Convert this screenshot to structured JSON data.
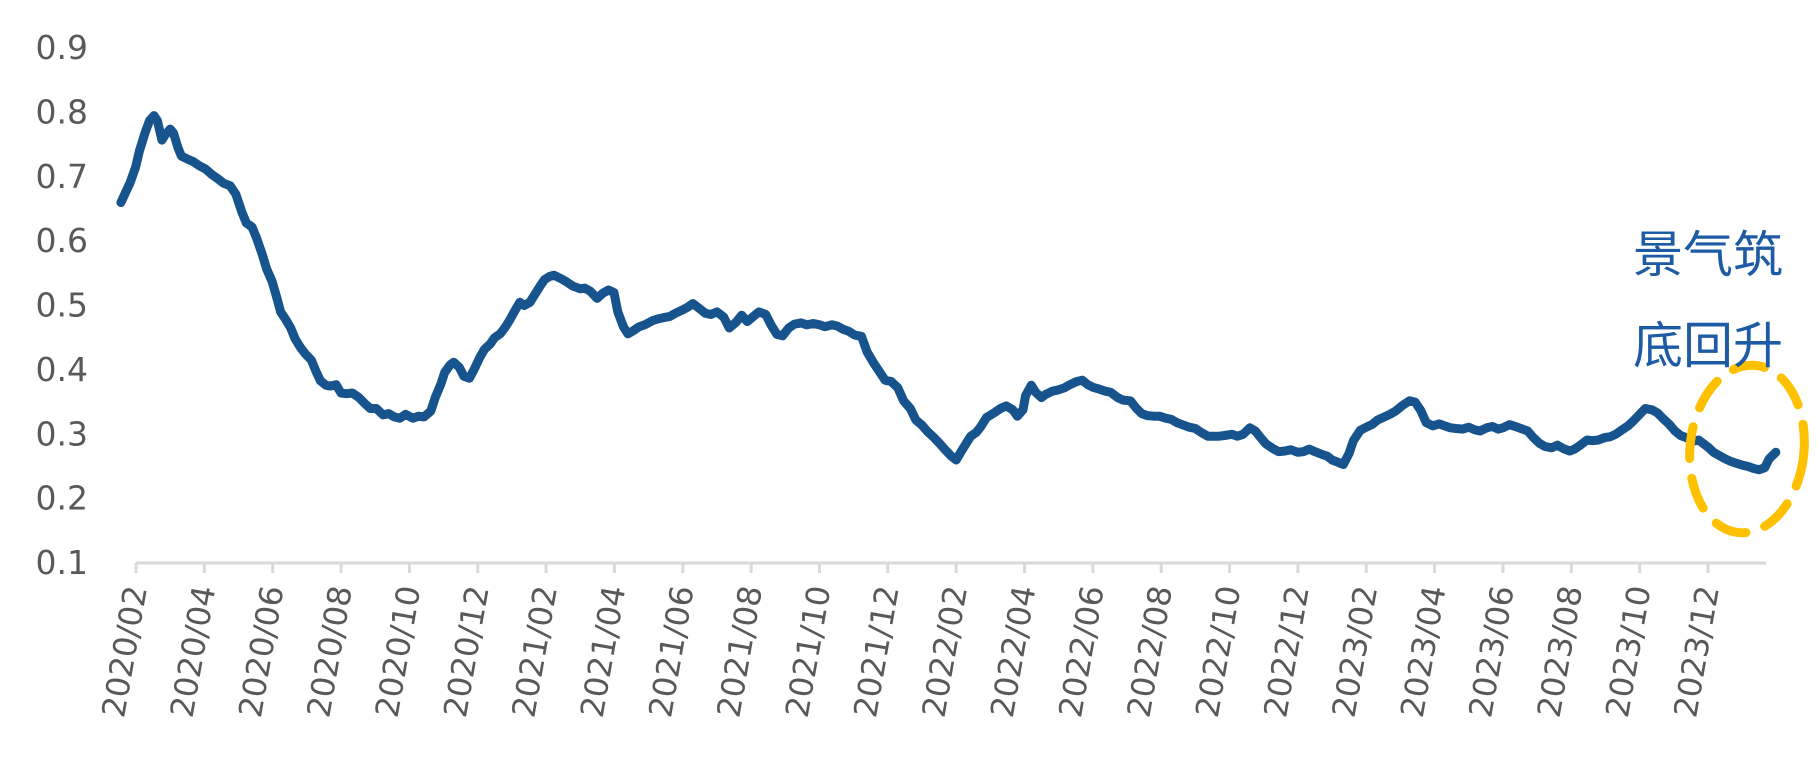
{
  "chart_data": {
    "type": "line",
    "title": "",
    "grid": false,
    "legend": "none",
    "colors": {
      "series_line": "#17538C",
      "annotation_text": "#1D5BA4",
      "highlight_ellipse": "#FFC000",
      "axis_line": "#D9D9D9",
      "tick_label": "#595959"
    },
    "annotation": {
      "line1": "景气筑",
      "line2": "底回升"
    },
    "highlight": {
      "shape": "dashed-ellipse",
      "around": "final dip and upturn of the line (late 2023 - early 2024)"
    },
    "y_axis": {
      "min": 0.1,
      "max": 0.9,
      "tick_labels": [
        "0.9",
        "0.8",
        "0.7",
        "0.6",
        "0.5",
        "0.4",
        "0.3",
        "0.2",
        "0.1"
      ]
    },
    "x_axis": {
      "start": "2020/02",
      "end_of_axis": "2024/01",
      "tick_interval_months": 2,
      "tick_labels": [
        "2020/02",
        "2020/04",
        "2020/06",
        "2020/08",
        "2020/10",
        "2020/12",
        "2021/02",
        "2021/04",
        "2021/06",
        "2021/08",
        "2021/10",
        "2021/12",
        "2022/02",
        "2022/04",
        "2022/06",
        "2022/08",
        "2022/10",
        "2022/12",
        "2023/02",
        "2023/04",
        "2023/06",
        "2023/08",
        "2023/10",
        "2023/12"
      ]
    },
    "points": [
      [
        "2020-01-18",
        0.66
      ],
      [
        "2020-01-22",
        0.675
      ],
      [
        "2020-01-26",
        0.69
      ],
      [
        "2020-01-31",
        0.715
      ],
      [
        "2020-02-04",
        0.74
      ],
      [
        "2020-02-09",
        0.768
      ],
      [
        "2020-02-13",
        0.787
      ],
      [
        "2020-02-17",
        0.795
      ],
      [
        "2020-02-20",
        0.787
      ],
      [
        "2020-02-24",
        0.757
      ],
      [
        "2020-02-27",
        0.765
      ],
      [
        "2020-03-01",
        0.774
      ],
      [
        "2020-03-04",
        0.768
      ],
      [
        "2020-03-08",
        0.745
      ],
      [
        "2020-03-11",
        0.732
      ],
      [
        "2020-03-17",
        0.727
      ],
      [
        "2020-03-22",
        0.723
      ],
      [
        "2020-03-27",
        0.717
      ],
      [
        "2020-04-02",
        0.712
      ],
      [
        "2020-04-08",
        0.703
      ],
      [
        "2020-04-13",
        0.697
      ],
      [
        "2020-04-18",
        0.69
      ],
      [
        "2020-04-24",
        0.686
      ],
      [
        "2020-04-29",
        0.673
      ],
      [
        "2020-05-04",
        0.645
      ],
      [
        "2020-05-08",
        0.628
      ],
      [
        "2020-05-13",
        0.622
      ],
      [
        "2020-05-17",
        0.605
      ],
      [
        "2020-05-22",
        0.58
      ],
      [
        "2020-05-26",
        0.557
      ],
      [
        "2020-05-31",
        0.537
      ],
      [
        "2020-06-05",
        0.51
      ],
      [
        "2020-06-08",
        0.49
      ],
      [
        "2020-06-13",
        0.477
      ],
      [
        "2020-06-17",
        0.465
      ],
      [
        "2020-06-21",
        0.448
      ],
      [
        "2020-06-26",
        0.434
      ],
      [
        "2020-06-30",
        0.425
      ],
      [
        "2020-07-05",
        0.415
      ],
      [
        "2020-07-09",
        0.398
      ],
      [
        "2020-07-13",
        0.383
      ],
      [
        "2020-07-18",
        0.376
      ],
      [
        "2020-07-22",
        0.375
      ],
      [
        "2020-07-27",
        0.377
      ],
      [
        "2020-08-01",
        0.364
      ],
      [
        "2020-08-06",
        0.363
      ],
      [
        "2020-08-11",
        0.364
      ],
      [
        "2020-08-17",
        0.357
      ],
      [
        "2020-08-22",
        0.348
      ],
      [
        "2020-08-27",
        0.34
      ],
      [
        "2020-09-02",
        0.34
      ],
      [
        "2020-09-08",
        0.33
      ],
      [
        "2020-09-13",
        0.332
      ],
      [
        "2020-09-18",
        0.327
      ],
      [
        "2020-09-23",
        0.325
      ],
      [
        "2020-09-28",
        0.331
      ],
      [
        "2020-10-04",
        0.325
      ],
      [
        "2020-10-09",
        0.328
      ],
      [
        "2020-10-14",
        0.327
      ],
      [
        "2020-10-20",
        0.336
      ],
      [
        "2020-10-24",
        0.357
      ],
      [
        "2020-10-29",
        0.378
      ],
      [
        "2020-11-02",
        0.396
      ],
      [
        "2020-11-07",
        0.408
      ],
      [
        "2020-11-10",
        0.412
      ],
      [
        "2020-11-15",
        0.404
      ],
      [
        "2020-11-19",
        0.39
      ],
      [
        "2020-11-24",
        0.387
      ],
      [
        "2020-11-28",
        0.4
      ],
      [
        "2020-12-03",
        0.42
      ],
      [
        "2020-12-07",
        0.432
      ],
      [
        "2020-12-12",
        0.44
      ],
      [
        "2020-12-16",
        0.45
      ],
      [
        "2020-12-21",
        0.456
      ],
      [
        "2020-12-25",
        0.465
      ],
      [
        "2020-12-29",
        0.476
      ],
      [
        "2021-01-03",
        0.49
      ],
      [
        "2021-01-08",
        0.505
      ],
      [
        "2021-01-12",
        0.5
      ],
      [
        "2021-01-17",
        0.505
      ],
      [
        "2021-01-21",
        0.516
      ],
      [
        "2021-01-26",
        0.53
      ],
      [
        "2021-01-30",
        0.54
      ],
      [
        "2021-02-04",
        0.545
      ],
      [
        "2021-02-08",
        0.547
      ],
      [
        "2021-02-14",
        0.542
      ],
      [
        "2021-02-19",
        0.537
      ],
      [
        "2021-02-25",
        0.53
      ],
      [
        "2021-03-01",
        0.526
      ],
      [
        "2021-03-05",
        0.527
      ],
      [
        "2021-03-10",
        0.522
      ],
      [
        "2021-03-16",
        0.511
      ],
      [
        "2021-03-21",
        0.519
      ],
      [
        "2021-03-26",
        0.524
      ],
      [
        "2021-03-31",
        0.52
      ],
      [
        "2021-04-04",
        0.49
      ],
      [
        "2021-04-09",
        0.467
      ],
      [
        "2021-04-13",
        0.456
      ],
      [
        "2021-04-18",
        0.461
      ],
      [
        "2021-04-23",
        0.467
      ],
      [
        "2021-04-28",
        0.47
      ],
      [
        "2021-05-04",
        0.476
      ],
      [
        "2021-05-09",
        0.479
      ],
      [
        "2021-05-14",
        0.481
      ],
      [
        "2021-05-20",
        0.483
      ],
      [
        "2021-05-25",
        0.488
      ],
      [
        "2021-05-30",
        0.492
      ],
      [
        "2021-06-05",
        0.497
      ],
      [
        "2021-06-10",
        0.503
      ],
      [
        "2021-06-16",
        0.495
      ],
      [
        "2021-06-21",
        0.488
      ],
      [
        "2021-06-26",
        0.486
      ],
      [
        "2021-07-01",
        0.49
      ],
      [
        "2021-07-07",
        0.482
      ],
      [
        "2021-07-12",
        0.465
      ],
      [
        "2021-07-18",
        0.474
      ],
      [
        "2021-07-23",
        0.485
      ],
      [
        "2021-07-28",
        0.475
      ],
      [
        "2021-08-03",
        0.483
      ],
      [
        "2021-08-08",
        0.49
      ],
      [
        "2021-08-14",
        0.486
      ],
      [
        "2021-08-19",
        0.469
      ],
      [
        "2021-08-24",
        0.455
      ],
      [
        "2021-08-29",
        0.453
      ],
      [
        "2021-09-04",
        0.465
      ],
      [
        "2021-09-09",
        0.471
      ],
      [
        "2021-09-15",
        0.473
      ],
      [
        "2021-09-20",
        0.47
      ],
      [
        "2021-09-26",
        0.472
      ],
      [
        "2021-10-01",
        0.47
      ],
      [
        "2021-10-06",
        0.467
      ],
      [
        "2021-10-12",
        0.47
      ],
      [
        "2021-10-17",
        0.468
      ],
      [
        "2021-10-22",
        0.463
      ],
      [
        "2021-10-27",
        0.46
      ],
      [
        "2021-11-02",
        0.454
      ],
      [
        "2021-11-08",
        0.452
      ],
      [
        "2021-11-13",
        0.428
      ],
      [
        "2021-11-19",
        0.41
      ],
      [
        "2021-11-24",
        0.397
      ],
      [
        "2021-11-29",
        0.384
      ],
      [
        "2021-12-04",
        0.382
      ],
      [
        "2021-12-10",
        0.372
      ],
      [
        "2021-12-15",
        0.352
      ],
      [
        "2021-12-21",
        0.34
      ],
      [
        "2021-12-26",
        0.322
      ],
      [
        "2022-01-01",
        0.314
      ],
      [
        "2022-01-06",
        0.304
      ],
      [
        "2022-01-11",
        0.296
      ],
      [
        "2022-01-17",
        0.285
      ],
      [
        "2022-01-22",
        0.275
      ],
      [
        "2022-01-27",
        0.266
      ],
      [
        "2022-02-01",
        0.26
      ],
      [
        "2022-02-05",
        0.272
      ],
      [
        "2022-02-10",
        0.286
      ],
      [
        "2022-02-14",
        0.297
      ],
      [
        "2022-02-19",
        0.303
      ],
      [
        "2022-02-23",
        0.312
      ],
      [
        "2022-02-28",
        0.326
      ],
      [
        "2022-03-05",
        0.334
      ],
      [
        "2022-03-10",
        0.34
      ],
      [
        "2022-03-15",
        0.344
      ],
      [
        "2022-03-21",
        0.338
      ],
      [
        "2022-03-25",
        0.328
      ],
      [
        "2022-03-30",
        0.338
      ],
      [
        "2022-04-02",
        0.36
      ],
      [
        "2022-04-07",
        0.376
      ],
      [
        "2022-04-11",
        0.365
      ],
      [
        "2022-04-16",
        0.357
      ],
      [
        "2022-04-20",
        0.362
      ],
      [
        "2022-04-26",
        0.367
      ],
      [
        "2022-05-01",
        0.369
      ],
      [
        "2022-05-06",
        0.372
      ],
      [
        "2022-05-11",
        0.377
      ],
      [
        "2022-05-17",
        0.382
      ],
      [
        "2022-05-22",
        0.384
      ],
      [
        "2022-05-27",
        0.377
      ],
      [
        "2022-06-01",
        0.373
      ],
      [
        "2022-06-07",
        0.37
      ],
      [
        "2022-06-12",
        0.367
      ],
      [
        "2022-06-17",
        0.365
      ],
      [
        "2022-06-23",
        0.357
      ],
      [
        "2022-06-28",
        0.353
      ],
      [
        "2022-07-04",
        0.352
      ],
      [
        "2022-07-09",
        0.341
      ],
      [
        "2022-07-14",
        0.332
      ],
      [
        "2022-07-19",
        0.329
      ],
      [
        "2022-07-25",
        0.328
      ],
      [
        "2022-07-30",
        0.328
      ],
      [
        "2022-08-05",
        0.325
      ],
      [
        "2022-08-10",
        0.323
      ],
      [
        "2022-08-15",
        0.318
      ],
      [
        "2022-08-21",
        0.314
      ],
      [
        "2022-08-26",
        0.311
      ],
      [
        "2022-09-01",
        0.309
      ],
      [
        "2022-09-06",
        0.303
      ],
      [
        "2022-09-12",
        0.297
      ],
      [
        "2022-09-17",
        0.297
      ],
      [
        "2022-09-22",
        0.297
      ],
      [
        "2022-09-27",
        0.298
      ],
      [
        "2022-10-03",
        0.3
      ],
      [
        "2022-10-08",
        0.297
      ],
      [
        "2022-10-13",
        0.3
      ],
      [
        "2022-10-19",
        0.31
      ],
      [
        "2022-10-24",
        0.305
      ],
      [
        "2022-10-29",
        0.294
      ],
      [
        "2022-11-03",
        0.285
      ],
      [
        "2022-11-09",
        0.278
      ],
      [
        "2022-11-14",
        0.273
      ],
      [
        "2022-11-20",
        0.274
      ],
      [
        "2022-11-25",
        0.276
      ],
      [
        "2022-12-01",
        0.272
      ],
      [
        "2022-12-06",
        0.273
      ],
      [
        "2022-12-11",
        0.277
      ],
      [
        "2022-12-16",
        0.273
      ],
      [
        "2022-12-22",
        0.269
      ],
      [
        "2022-12-27",
        0.266
      ],
      [
        "2023-01-01",
        0.26
      ],
      [
        "2023-01-07",
        0.256
      ],
      [
        "2023-01-11",
        0.253
      ],
      [
        "2023-01-16",
        0.27
      ],
      [
        "2023-01-20",
        0.29
      ],
      [
        "2023-01-26",
        0.306
      ],
      [
        "2023-02-01",
        0.311
      ],
      [
        "2023-02-06",
        0.315
      ],
      [
        "2023-02-11",
        0.322
      ],
      [
        "2023-02-17",
        0.327
      ],
      [
        "2023-02-22",
        0.331
      ],
      [
        "2023-02-27",
        0.336
      ],
      [
        "2023-03-03",
        0.345
      ],
      [
        "2023-03-09",
        0.352
      ],
      [
        "2023-03-14",
        0.35
      ],
      [
        "2023-03-19",
        0.337
      ],
      [
        "2023-03-24",
        0.318
      ],
      [
        "2023-03-30",
        0.313
      ],
      [
        "2023-04-05",
        0.316
      ],
      [
        "2023-04-10",
        0.313
      ],
      [
        "2023-04-15",
        0.31
      ],
      [
        "2023-04-20",
        0.309
      ],
      [
        "2023-04-26",
        0.308
      ],
      [
        "2023-05-01",
        0.311
      ],
      [
        "2023-05-06",
        0.307
      ],
      [
        "2023-05-11",
        0.305
      ],
      [
        "2023-05-17",
        0.31
      ],
      [
        "2023-05-22",
        0.312
      ],
      [
        "2023-05-27",
        0.308
      ],
      [
        "2023-06-01",
        0.31
      ],
      [
        "2023-06-07",
        0.315
      ],
      [
        "2023-06-12",
        0.312
      ],
      [
        "2023-06-17",
        0.309
      ],
      [
        "2023-06-23",
        0.305
      ],
      [
        "2023-06-28",
        0.295
      ],
      [
        "2023-07-03",
        0.286
      ],
      [
        "2023-07-08",
        0.281
      ],
      [
        "2023-07-14",
        0.279
      ],
      [
        "2023-07-19",
        0.283
      ],
      [
        "2023-07-24",
        0.278
      ],
      [
        "2023-07-30",
        0.274
      ],
      [
        "2023-08-04",
        0.277
      ],
      [
        "2023-08-09",
        0.283
      ],
      [
        "2023-08-15",
        0.291
      ],
      [
        "2023-08-20",
        0.29
      ],
      [
        "2023-08-25",
        0.291
      ],
      [
        "2023-08-31",
        0.295
      ],
      [
        "2023-09-05",
        0.296
      ],
      [
        "2023-09-10",
        0.3
      ],
      [
        "2023-09-15",
        0.306
      ],
      [
        "2023-09-21",
        0.313
      ],
      [
        "2023-09-26",
        0.321
      ],
      [
        "2023-10-01",
        0.331
      ],
      [
        "2023-10-06",
        0.34
      ],
      [
        "2023-10-12",
        0.338
      ],
      [
        "2023-10-17",
        0.333
      ],
      [
        "2023-10-22",
        0.324
      ],
      [
        "2023-10-27",
        0.316
      ],
      [
        "2023-11-02",
        0.305
      ],
      [
        "2023-11-07",
        0.298
      ],
      [
        "2023-11-13",
        0.294
      ],
      [
        "2023-11-18",
        0.289
      ],
      [
        "2023-11-23",
        0.291
      ],
      [
        "2023-12-01",
        0.28
      ],
      [
        "2023-12-06",
        0.272
      ],
      [
        "2023-12-11",
        0.267
      ],
      [
        "2023-12-16",
        0.262
      ],
      [
        "2023-12-21",
        0.258
      ],
      [
        "2023-12-26",
        0.255
      ],
      [
        "2024-01-01",
        0.252
      ],
      [
        "2024-01-06",
        0.25
      ],
      [
        "2024-01-11",
        0.247
      ],
      [
        "2024-01-16",
        0.245
      ],
      [
        "2024-01-21",
        0.248
      ],
      [
        "2024-01-25",
        0.262
      ],
      [
        "2024-01-31",
        0.272
      ]
    ]
  }
}
